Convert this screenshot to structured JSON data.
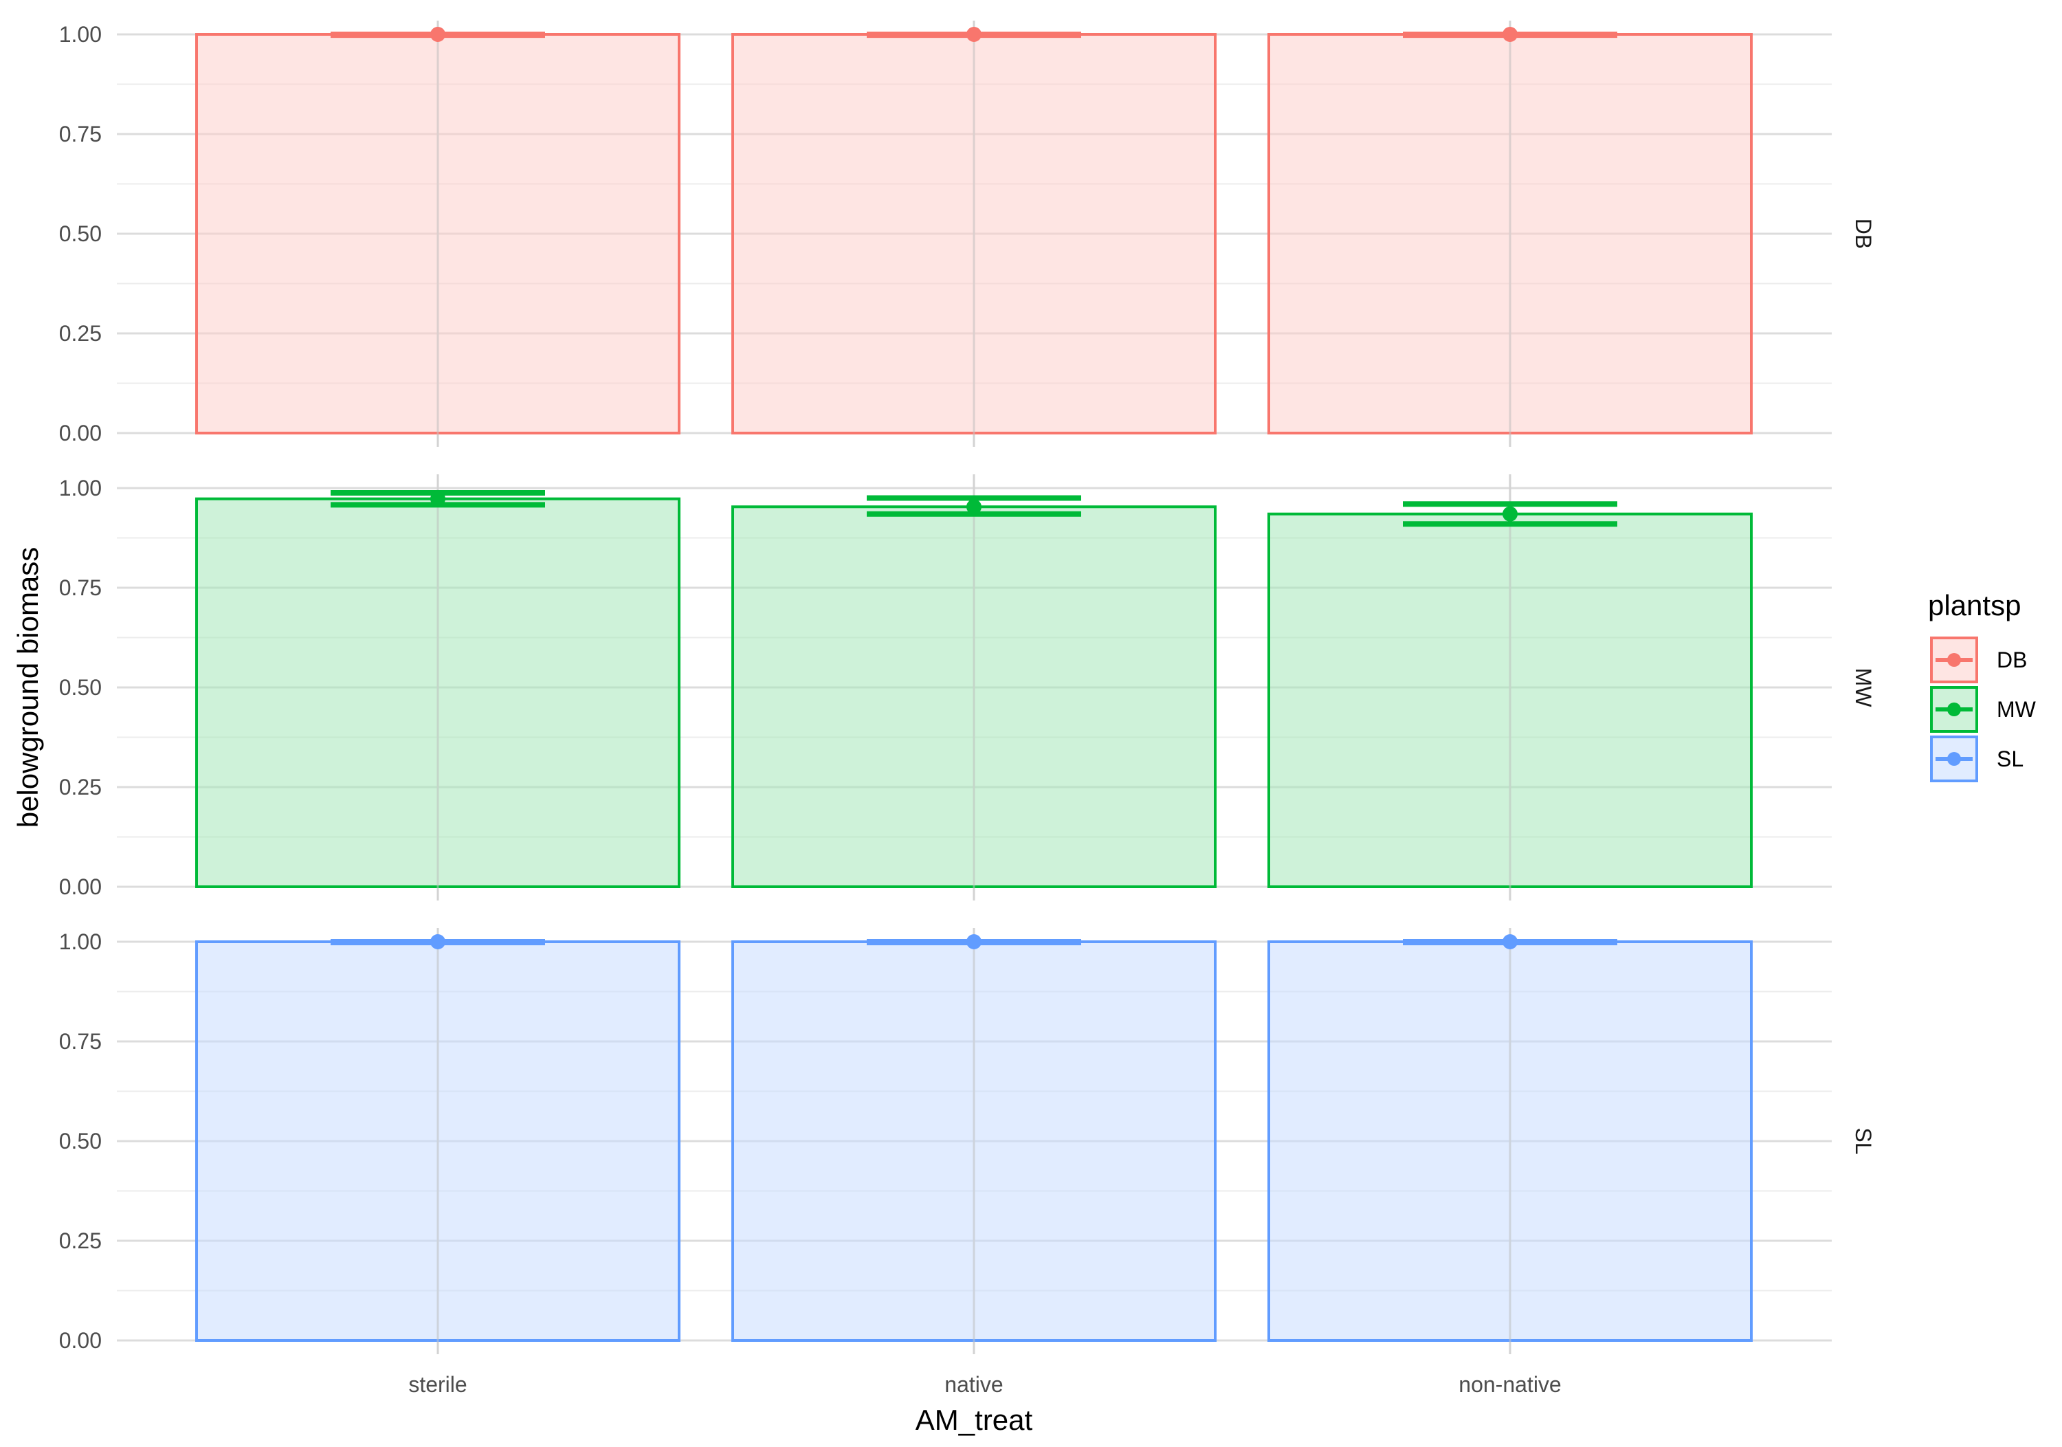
{
  "chart_data": {
    "type": "bar",
    "title": "",
    "xlabel": "AM_treat",
    "ylabel": "belowground biomass",
    "categories": [
      "sterile",
      "native",
      "non-native"
    ],
    "ylim": [
      0,
      1
    ],
    "y_ticks": [
      "0.00",
      "0.25",
      "0.50",
      "0.75",
      "1.00"
    ],
    "facet_by": "plantsp",
    "facets": [
      {
        "name": "DB",
        "color": "#F8766D",
        "values": [
          1.0,
          1.0,
          1.0
        ],
        "error_low": [
          0.998,
          0.998,
          0.998
        ],
        "error_high": [
          1.0,
          1.0,
          1.0
        ]
      },
      {
        "name": "MW",
        "color": "#00BA38",
        "values": [
          0.973,
          0.953,
          0.935
        ],
        "error_low": [
          0.958,
          0.935,
          0.91
        ],
        "error_high": [
          0.988,
          0.975,
          0.96
        ]
      },
      {
        "name": "SL",
        "color": "#619CFF",
        "values": [
          1.0,
          1.0,
          1.0
        ],
        "error_low": [
          0.998,
          0.998,
          0.998
        ],
        "error_high": [
          1.0,
          1.0,
          1.0
        ]
      }
    ],
    "legend": {
      "title": "plantsp",
      "entries": [
        "DB",
        "MW",
        "SL"
      ],
      "position": "right"
    },
    "grid": true
  }
}
